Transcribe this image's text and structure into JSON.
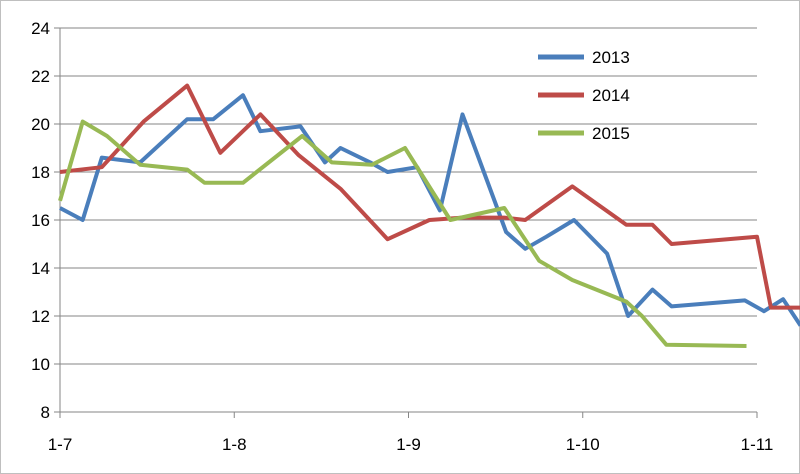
{
  "chart_data": {
    "type": "line",
    "title": "",
    "xlabel": "",
    "ylabel": "",
    "ylim": [
      8,
      24
    ],
    "yticks": [
      8,
      10,
      12,
      14,
      16,
      18,
      20,
      22,
      24
    ],
    "xticks": [
      "1-7",
      "1-8",
      "1-9",
      "1-10",
      "1-11"
    ],
    "grid": true,
    "legend_position": "top-right",
    "series": [
      {
        "name": "2013",
        "color": "#4a7ebb",
        "points": [
          [
            1.0,
            16.5
          ],
          [
            1.13,
            16.0
          ],
          [
            1.24,
            18.6
          ],
          [
            1.46,
            18.4
          ],
          [
            1.73,
            20.2
          ],
          [
            1.88,
            20.2
          ],
          [
            2.05,
            21.2
          ],
          [
            2.15,
            19.7
          ],
          [
            2.38,
            19.9
          ],
          [
            2.52,
            18.4
          ],
          [
            2.61,
            19.0
          ],
          [
            2.78,
            18.4
          ],
          [
            2.88,
            18.0
          ],
          [
            3.05,
            18.2
          ],
          [
            3.18,
            16.4
          ],
          [
            3.31,
            20.4
          ],
          [
            3.56,
            15.5
          ],
          [
            3.67,
            14.8
          ],
          [
            3.79,
            15.3
          ],
          [
            3.95,
            16.0
          ],
          [
            4.14,
            14.6
          ],
          [
            4.26,
            12.0
          ],
          [
            4.4,
            13.1
          ],
          [
            4.51,
            12.4
          ],
          [
            4.93,
            12.65
          ],
          [
            5.04,
            12.2
          ],
          [
            5.15,
            12.7
          ],
          [
            5.25,
            11.6
          ]
        ]
      },
      {
        "name": "2014",
        "color": "#be4b48",
        "points": [
          [
            1.0,
            18.0
          ],
          [
            1.24,
            18.2
          ],
          [
            1.48,
            20.1
          ],
          [
            1.73,
            21.6
          ],
          [
            1.92,
            18.8
          ],
          [
            2.15,
            20.4
          ],
          [
            2.37,
            18.7
          ],
          [
            2.61,
            17.3
          ],
          [
            2.88,
            15.2
          ],
          [
            3.12,
            16.0
          ],
          [
            3.31,
            16.1
          ],
          [
            3.55,
            16.1
          ],
          [
            3.67,
            16.0
          ],
          [
            3.94,
            17.4
          ],
          [
            4.25,
            15.8
          ],
          [
            4.4,
            15.8
          ],
          [
            4.51,
            15.0
          ],
          [
            5.0,
            15.3
          ],
          [
            5.08,
            12.35
          ],
          [
            5.26,
            12.35
          ]
        ]
      },
      {
        "name": "2015",
        "color": "#98b954",
        "points": [
          [
            1.0,
            16.8
          ],
          [
            1.13,
            20.1
          ],
          [
            1.27,
            19.5
          ],
          [
            1.46,
            18.3
          ],
          [
            1.73,
            18.1
          ],
          [
            1.83,
            17.55
          ],
          [
            2.05,
            17.55
          ],
          [
            2.39,
            19.5
          ],
          [
            2.56,
            18.4
          ],
          [
            2.79,
            18.3
          ],
          [
            2.98,
            19.0
          ],
          [
            3.24,
            16.0
          ],
          [
            3.55,
            16.5
          ],
          [
            3.75,
            14.3
          ],
          [
            3.94,
            13.5
          ],
          [
            4.25,
            12.6
          ],
          [
            4.34,
            12.0
          ],
          [
            4.48,
            10.8
          ],
          [
            4.94,
            10.75
          ]
        ]
      }
    ]
  }
}
